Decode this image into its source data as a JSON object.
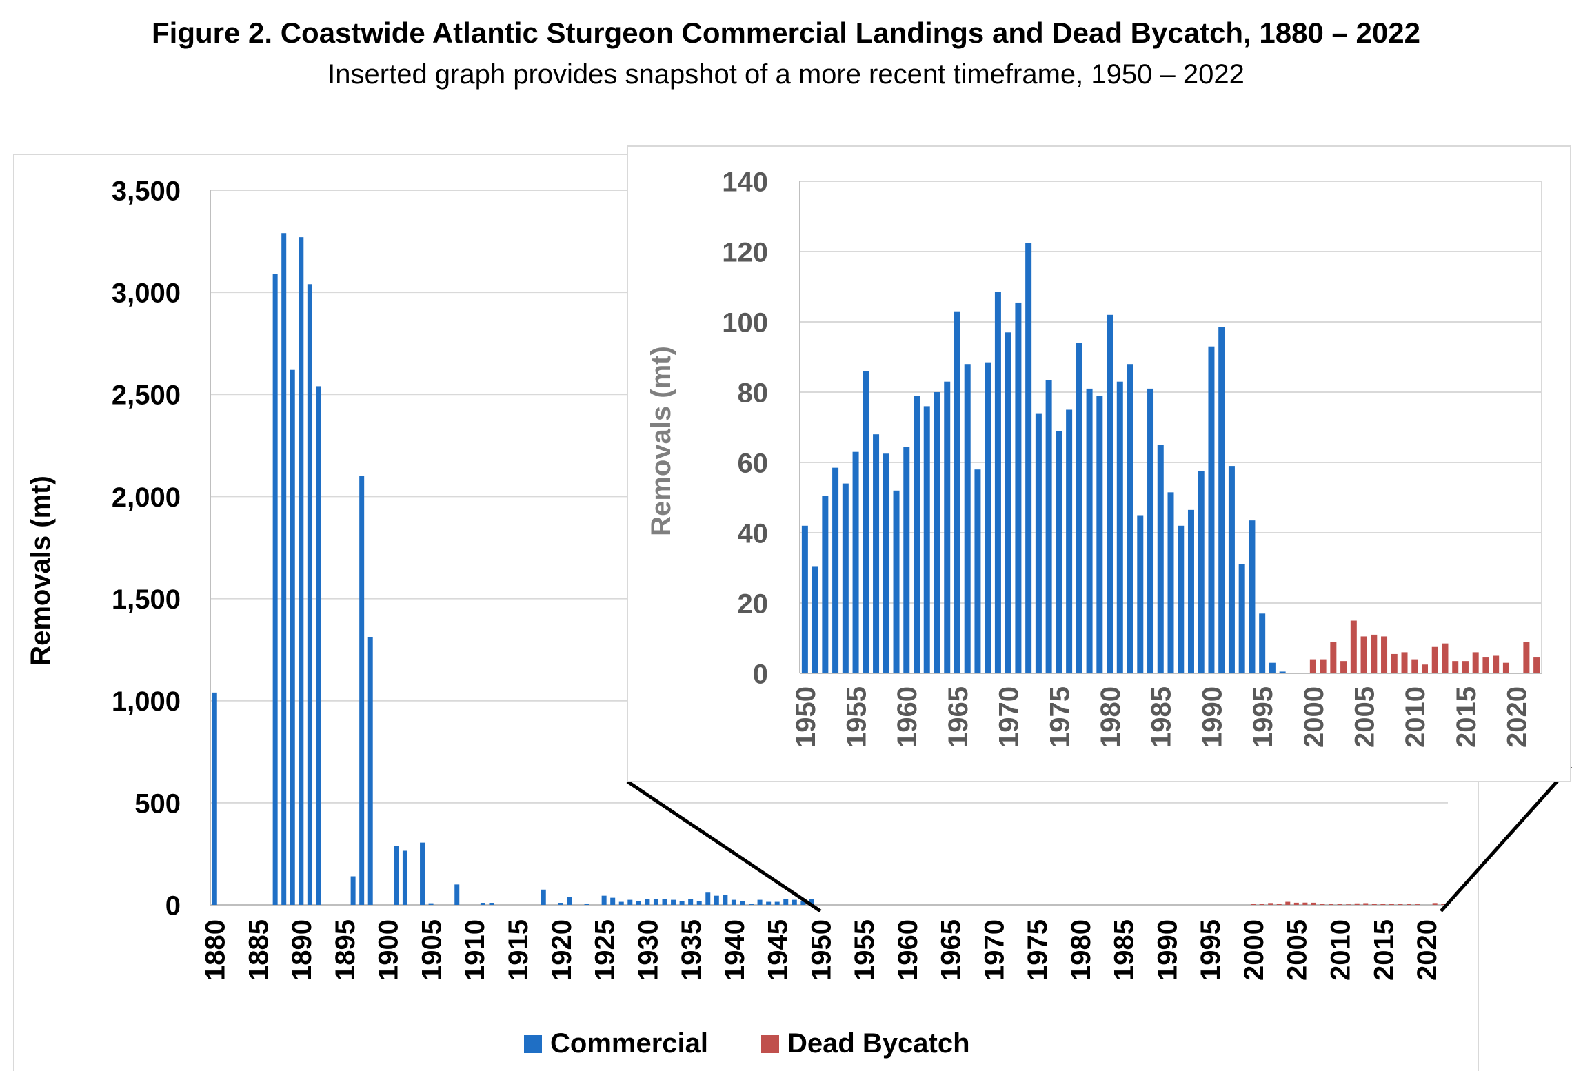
{
  "title": "Figure 2. Coastwide Atlantic Sturgeon Commercial Landings and Dead Bycatch, 1880 – 2022",
  "subtitle": "Inserted graph provides snapshot of a more recent timeframe, 1950 – 2022",
  "colors": {
    "commercial": "#1f6fc5",
    "bycatch": "#c0504d",
    "grid": "#d9d9d9",
    "axis": "#bfbfbf",
    "inset_tick": "#595959"
  },
  "chart_data": [
    {
      "type": "bar",
      "ylabel": "Removals (mt)",
      "xlabel": "",
      "ylim": [
        0,
        3500
      ],
      "yticks": [
        0,
        500,
        1000,
        1500,
        2000,
        2500,
        3000,
        3500
      ],
      "ytick_labels": [
        "0",
        "500",
        "1,000",
        "1,500",
        "2,000",
        "2,500",
        "3,000",
        "3,500"
      ],
      "xlim": [
        1880,
        2022
      ],
      "xticks": [
        1880,
        1885,
        1890,
        1895,
        1900,
        1905,
        1910,
        1915,
        1920,
        1925,
        1930,
        1935,
        1940,
        1945,
        1950,
        1955,
        1960,
        1965,
        1970,
        1975,
        1980,
        1985,
        1990,
        1995,
        2000,
        2005,
        2010,
        2015,
        2020
      ],
      "grid": true,
      "legend": "bottom",
      "series": [
        {
          "name": "Commercial",
          "x": [
            1880,
            1887,
            1888,
            1889,
            1890,
            1891,
            1892,
            1896,
            1897,
            1898,
            1901,
            1902,
            1904,
            1905,
            1908,
            1911,
            1912,
            1918,
            1920,
            1921,
            1923,
            1925,
            1926,
            1927,
            1928,
            1929,
            1930,
            1931,
            1932,
            1933,
            1934,
            1935,
            1936,
            1937,
            1938,
            1939,
            1940,
            1941,
            1942,
            1943,
            1944,
            1945,
            1946,
            1947,
            1948,
            1949
          ],
          "values": [
            1040,
            3090,
            3290,
            2620,
            3270,
            3040,
            2540,
            140,
            2100,
            1310,
            290,
            265,
            305,
            8,
            100,
            10,
            10,
            75,
            10,
            40,
            5,
            45,
            35,
            15,
            25,
            20,
            30,
            30,
            30,
            25,
            20,
            30,
            20,
            60,
            45,
            50,
            25,
            20,
            5,
            25,
            15,
            15,
            30,
            25,
            20,
            30
          ]
        },
        {
          "name": "Dead Bycatch",
          "x": [
            2000,
            2001,
            2002,
            2003,
            2004,
            2005,
            2006,
            2007,
            2008,
            2009,
            2010,
            2011,
            2012,
            2013,
            2014,
            2015,
            2016,
            2017,
            2018,
            2019,
            2020,
            2021,
            2022
          ],
          "values": [
            4,
            4,
            9,
            3.5,
            15,
            10.5,
            11,
            10.5,
            5.5,
            6,
            4,
            2.5,
            7.5,
            8.5,
            3.5,
            3.5,
            6,
            4.5,
            5,
            3,
            0,
            9,
            4.5
          ]
        }
      ]
    },
    {
      "type": "bar",
      "ylabel": "Removals (mt)",
      "xlabel": "",
      "ylim": [
        0,
        140
      ],
      "yticks": [
        0,
        20,
        40,
        60,
        80,
        100,
        120,
        140
      ],
      "xlim": [
        1950,
        2022
      ],
      "xticks": [
        1950,
        1955,
        1960,
        1965,
        1970,
        1975,
        1980,
        1985,
        1990,
        1995,
        2000,
        2005,
        2010,
        2015,
        2020
      ],
      "grid": true,
      "series": [
        {
          "name": "Commercial",
          "x": [
            1950,
            1951,
            1952,
            1953,
            1954,
            1955,
            1956,
            1957,
            1958,
            1959,
            1960,
            1961,
            1962,
            1963,
            1964,
            1965,
            1966,
            1967,
            1968,
            1969,
            1970,
            1971,
            1972,
            1973,
            1974,
            1975,
            1976,
            1977,
            1978,
            1979,
            1980,
            1981,
            1982,
            1983,
            1984,
            1985,
            1986,
            1987,
            1988,
            1989,
            1990,
            1991,
            1992,
            1993,
            1994,
            1995,
            1996,
            1997
          ],
          "values": [
            42,
            30.5,
            50.5,
            58.5,
            54,
            63,
            86,
            68,
            62.5,
            52,
            64.5,
            79,
            76,
            80,
            83,
            103,
            88,
            58,
            88.5,
            108.5,
            97,
            105.5,
            122.5,
            74,
            83.5,
            69,
            75,
            94,
            81,
            79,
            102,
            83,
            88,
            45,
            81,
            65,
            51.5,
            42,
            46.5,
            57.5,
            93,
            98.5,
            59,
            31,
            43.5,
            17,
            3,
            0.5
          ]
        },
        {
          "name": "Dead Bycatch",
          "x": [
            2000,
            2001,
            2002,
            2003,
            2004,
            2005,
            2006,
            2007,
            2008,
            2009,
            2010,
            2011,
            2012,
            2013,
            2014,
            2015,
            2016,
            2017,
            2018,
            2019,
            2020,
            2021,
            2022
          ],
          "values": [
            4,
            4,
            9,
            3.5,
            15,
            10.5,
            11,
            10.5,
            5.5,
            6,
            4,
            2.5,
            7.5,
            8.5,
            3.5,
            3.5,
            6,
            4.5,
            5,
            3,
            0,
            9,
            4.5
          ]
        }
      ]
    }
  ]
}
